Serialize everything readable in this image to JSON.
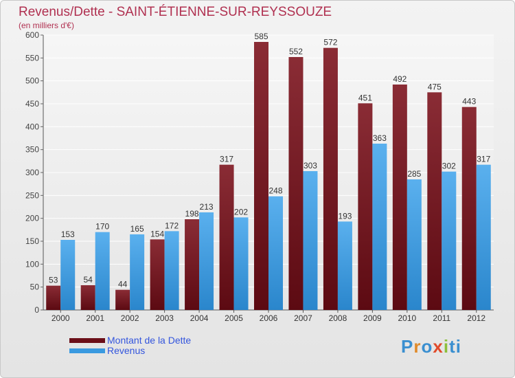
{
  "header": {
    "title": "Revenus/Dette - SAINT-ÉTIENNE-SUR-REYSSOUZE",
    "subtitle": "(en milliers d'€)"
  },
  "colors": {
    "title": "#b03050",
    "debt": "#7a1c25",
    "revenue": "#3a9ae0",
    "legend_text": "#3355dd"
  },
  "legend": [
    {
      "label": "Montant de la Dette",
      "color": "#6b0f18"
    },
    {
      "label": "Revenus",
      "color": "#3a9ae0"
    }
  ],
  "logo": {
    "letters": [
      "P",
      "r",
      "o",
      "x",
      "i",
      "t",
      "i"
    ],
    "colors": [
      "#3a8fd0",
      "#e08a2a",
      "#3a8fd0",
      "#e04a2a",
      "#8bbf3a",
      "#3a8fd0",
      "#3a8fd0"
    ]
  },
  "chart_data": {
    "type": "bar",
    "categories": [
      "2000",
      "2001",
      "2002",
      "2003",
      "2004",
      "2005",
      "2006",
      "2007",
      "2008",
      "2009",
      "2010",
      "2011",
      "2012"
    ],
    "series": [
      {
        "name": "Montant de la Dette",
        "values": [
          53,
          54,
          44,
          154,
          198,
          317,
          585,
          552,
          572,
          451,
          492,
          475,
          443
        ]
      },
      {
        "name": "Revenus",
        "values": [
          153,
          170,
          165,
          172,
          213,
          202,
          248,
          303,
          193,
          363,
          285,
          302,
          317
        ]
      }
    ],
    "yticks": [
      "0",
      "50",
      "100",
      "150",
      "200",
      "250",
      "300",
      "350",
      "400",
      "450",
      "500",
      "550",
      "600"
    ],
    "ylim": [
      0,
      600
    ],
    "grid": true
  }
}
